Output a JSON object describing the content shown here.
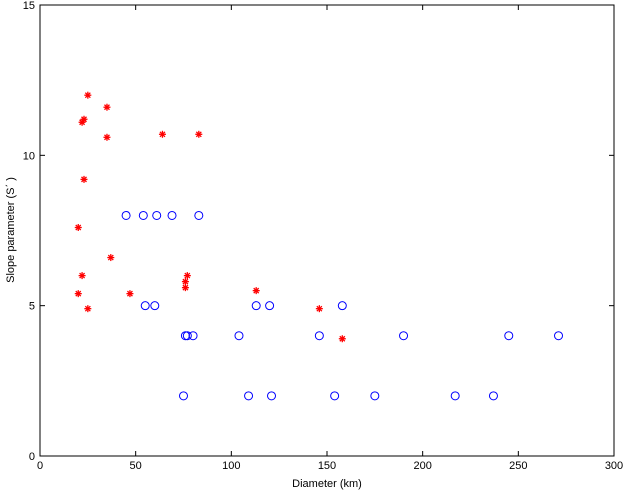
{
  "chart_data": {
    "type": "scatter",
    "title": "",
    "xlabel": "Diameter (km)",
    "ylabel": "Slope parameter (S΄ )",
    "xlim": [
      0,
      300
    ],
    "ylim": [
      0,
      15
    ],
    "x_ticks": [
      0,
      50,
      100,
      150,
      200,
      250,
      300
    ],
    "y_ticks": [
      0,
      5,
      10,
      15
    ],
    "grid": false,
    "series": [
      {
        "marker": "asterisk",
        "color": "#ff0000",
        "points": [
          [
            25,
            12.0
          ],
          [
            35,
            11.6
          ],
          [
            22,
            11.1
          ],
          [
            23,
            11.2
          ],
          [
            35,
            10.6
          ],
          [
            64,
            10.7
          ],
          [
            83,
            10.7
          ],
          [
            23,
            9.2
          ],
          [
            20,
            7.6
          ],
          [
            37,
            6.6
          ],
          [
            22,
            6.0
          ],
          [
            77,
            6.0
          ],
          [
            76,
            5.8
          ],
          [
            76,
            5.6
          ],
          [
            20,
            5.4
          ],
          [
            47,
            5.4
          ],
          [
            113,
            5.5
          ],
          [
            25,
            4.9
          ],
          [
            146,
            4.9
          ],
          [
            158,
            3.9
          ]
        ]
      },
      {
        "marker": "circle",
        "color": "#0000ff",
        "points": [
          [
            45,
            8.0
          ],
          [
            54,
            8.0
          ],
          [
            61,
            8.0
          ],
          [
            69,
            8.0
          ],
          [
            83,
            8.0
          ],
          [
            55,
            5.0
          ],
          [
            60,
            5.0
          ],
          [
            113,
            5.0
          ],
          [
            120,
            5.0
          ],
          [
            158,
            5.0
          ],
          [
            76,
            4.0
          ],
          [
            77,
            4.0
          ],
          [
            80,
            4.0
          ],
          [
            104,
            4.0
          ],
          [
            146,
            4.0
          ],
          [
            190,
            4.0
          ],
          [
            245,
            4.0
          ],
          [
            271,
            4.0
          ],
          [
            75,
            2.0
          ],
          [
            109,
            2.0
          ],
          [
            121,
            2.0
          ],
          [
            154,
            2.0
          ],
          [
            175,
            2.0
          ],
          [
            217,
            2.0
          ],
          [
            237,
            2.0
          ]
        ]
      }
    ]
  }
}
